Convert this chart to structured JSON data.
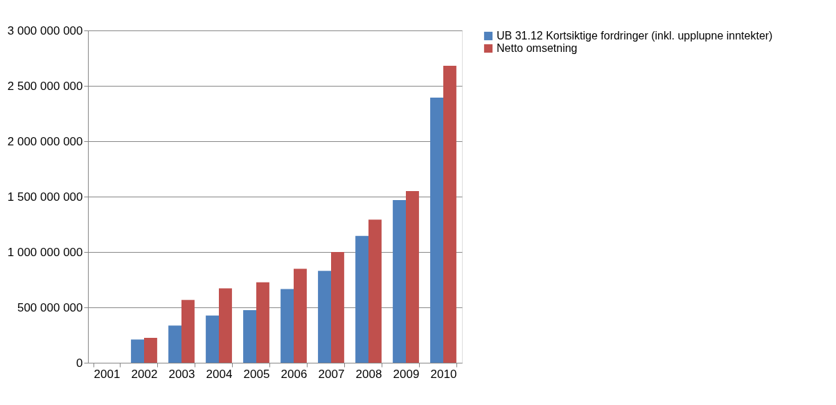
{
  "chart_data": {
    "type": "bar",
    "categories": [
      "2001",
      "2002",
      "2003",
      "2004",
      "2005",
      "2006",
      "2007",
      "2008",
      "2009",
      "2010"
    ],
    "series": [
      {
        "name": "UB 31.12 Kortsiktige fordringer (inkl. upplupne inntekter)",
        "color": "#4f81bd",
        "values": [
          null,
          210000000,
          336000000,
          427000000,
          475000000,
          666000000,
          830000000,
          1146000000,
          1468000000,
          2394000000
        ]
      },
      {
        "name": "Netto omsetning",
        "color": "#c0504d",
        "values": [
          null,
          225000000,
          567000000,
          672000000,
          726000000,
          849000000,
          1000000000,
          1292000000,
          1550000000,
          2681000000
        ]
      }
    ],
    "ylim": [
      0,
      3000000000
    ],
    "yticks": [
      {
        "value": 0,
        "label": "0"
      },
      {
        "value": 500000000,
        "label": "500 000 000"
      },
      {
        "value": 1000000000,
        "label": "1 000 000 000"
      },
      {
        "value": 1500000000,
        "label": "1 500 000 000"
      },
      {
        "value": 2000000000,
        "label": "2 000 000 000"
      },
      {
        "value": 2500000000,
        "label": "2 500 000 000"
      },
      {
        "value": 3000000000,
        "label": "3 000 000 000"
      }
    ],
    "grid": "y",
    "legend": "right"
  }
}
